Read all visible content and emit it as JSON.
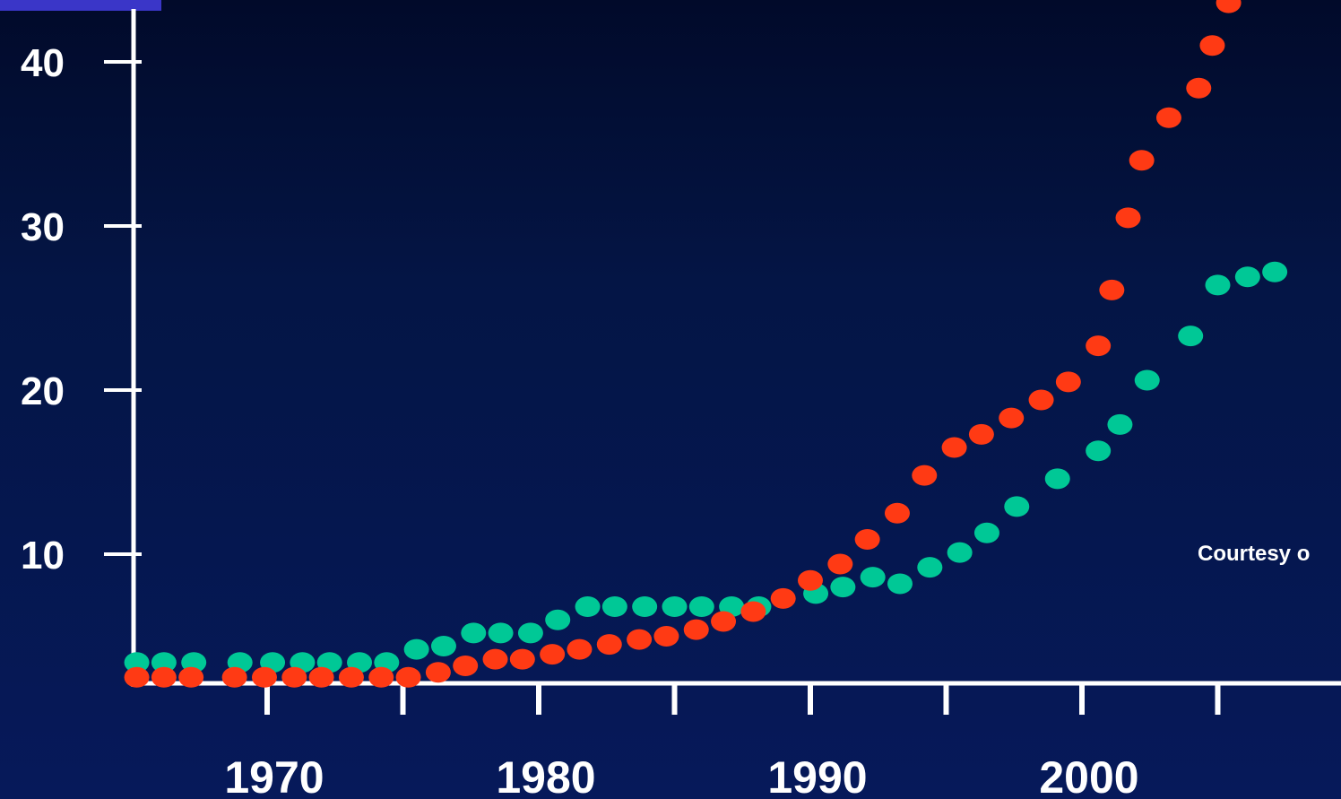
{
  "chart_data": {
    "type": "scatter",
    "title": "",
    "xlabel": "",
    "ylabel": "",
    "x_ticks": [
      "1970",
      "1980",
      "1990",
      "2000"
    ],
    "y_ticks": [
      "10",
      "20",
      "30",
      "40"
    ],
    "grid": false,
    "series": [
      {
        "color": "#00c896",
        "points": [
          [
            1965.2,
            3.4
          ],
          [
            1966.2,
            3.4
          ],
          [
            1967.3,
            3.4
          ],
          [
            1969.0,
            3.4
          ],
          [
            1970.2,
            3.4
          ],
          [
            1971.3,
            3.4
          ],
          [
            1972.3,
            3.4
          ],
          [
            1973.4,
            3.4
          ],
          [
            1974.4,
            3.4
          ],
          [
            1975.5,
            4.2
          ],
          [
            1976.5,
            4.4
          ],
          [
            1977.6,
            5.2
          ],
          [
            1978.6,
            5.2
          ],
          [
            1979.7,
            5.2
          ],
          [
            1980.7,
            6.0
          ],
          [
            1981.8,
            6.8
          ],
          [
            1982.8,
            6.8
          ],
          [
            1983.9,
            6.8
          ],
          [
            1985.0,
            6.8
          ],
          [
            1986.0,
            6.8
          ],
          [
            1987.1,
            6.8
          ],
          [
            1988.1,
            6.8
          ],
          [
            1990.2,
            7.6
          ],
          [
            1991.2,
            8.0
          ],
          [
            1992.3,
            8.6
          ],
          [
            1993.3,
            8.2
          ],
          [
            1994.4,
            9.2
          ],
          [
            1995.5,
            10.1
          ],
          [
            1996.5,
            11.3
          ],
          [
            1997.6,
            12.9
          ],
          [
            1999.1,
            14.6
          ],
          [
            2000.6,
            16.3
          ],
          [
            2001.4,
            17.9
          ],
          [
            2002.4,
            20.6
          ],
          [
            2004.0,
            23.3
          ],
          [
            2005.0,
            26.4
          ],
          [
            2006.1,
            26.9
          ],
          [
            2007.1,
            27.2
          ]
        ]
      },
      {
        "color": "#ff3a14",
        "points": [
          [
            1965.2,
            2.5
          ],
          [
            1966.2,
            2.5
          ],
          [
            1967.2,
            2.5
          ],
          [
            1968.8,
            2.5
          ],
          [
            1969.9,
            2.5
          ],
          [
            1971.0,
            2.5
          ],
          [
            1972.0,
            2.5
          ],
          [
            1973.1,
            2.5
          ],
          [
            1974.2,
            2.5
          ],
          [
            1975.2,
            2.5
          ],
          [
            1976.3,
            2.8
          ],
          [
            1977.3,
            3.2
          ],
          [
            1978.4,
            3.6
          ],
          [
            1979.4,
            3.6
          ],
          [
            1980.5,
            3.9
          ],
          [
            1981.5,
            4.2
          ],
          [
            1982.6,
            4.5
          ],
          [
            1983.7,
            4.8
          ],
          [
            1984.7,
            5.0
          ],
          [
            1985.8,
            5.4
          ],
          [
            1986.8,
            5.9
          ],
          [
            1987.9,
            6.5
          ],
          [
            1989.0,
            7.3
          ],
          [
            1990.0,
            8.4
          ],
          [
            1991.1,
            9.4
          ],
          [
            1992.1,
            10.9
          ],
          [
            1993.2,
            12.5
          ],
          [
            1994.2,
            14.8
          ],
          [
            1995.3,
            16.5
          ],
          [
            1996.3,
            17.3
          ],
          [
            1997.4,
            18.3
          ],
          [
            1998.5,
            19.4
          ],
          [
            1999.5,
            20.5
          ],
          [
            2000.6,
            22.7
          ],
          [
            2001.1,
            26.1
          ],
          [
            2001.7,
            30.5
          ],
          [
            2002.2,
            34.0
          ],
          [
            2003.2,
            36.6
          ],
          [
            2004.3,
            38.4
          ],
          [
            2004.8,
            41.0
          ],
          [
            2005.4,
            43.6
          ]
        ]
      }
    ]
  },
  "credit": "Courtesy o"
}
